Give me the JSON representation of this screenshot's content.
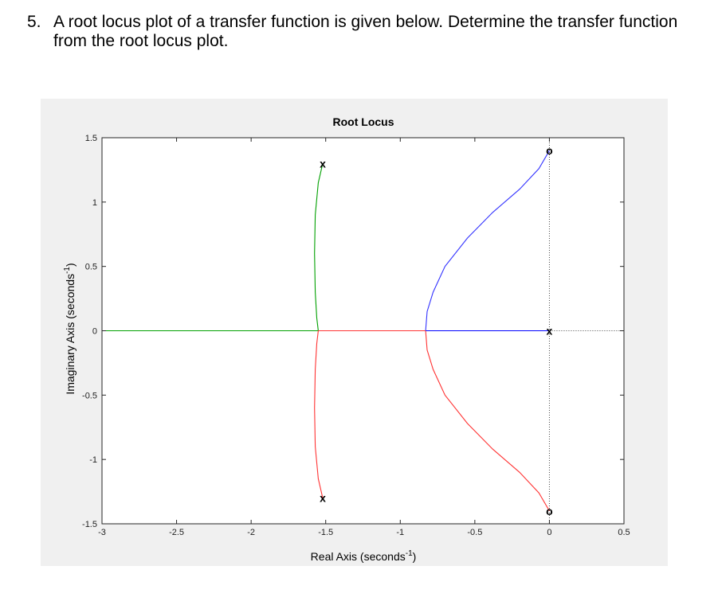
{
  "question": {
    "number": "5.",
    "text": "A root locus plot of a transfer function is given below.  Determine the transfer function from the root locus plot."
  },
  "chart_data": {
    "type": "line",
    "title": "Root Locus",
    "xlabel": "Real Axis (seconds",
    "ylabel": "Imaginary Axis (seconds",
    "axis_unit_exponent": "-1",
    "axis_label_close": ")",
    "xlim": [
      -3,
      0.5
    ],
    "ylim": [
      -1.5,
      1.5
    ],
    "xticks": [
      -3,
      -2.5,
      -2,
      -1.5,
      -1,
      -0.5,
      0,
      0.5
    ],
    "yticks": [
      -1.5,
      -1,
      -0.5,
      0,
      0.5,
      1,
      1.5
    ],
    "xtick_labels": [
      "-3",
      "-2.5",
      "-2",
      "-1.5",
      "-1",
      "-0.5",
      "0",
      "0.5"
    ],
    "ytick_labels": [
      "-1.5",
      "-1",
      "-0.5",
      "0",
      "0.5",
      "1",
      "1.5"
    ],
    "grid": false,
    "poles": [
      {
        "re": -1.52,
        "im": 1.3,
        "symbol": "x"
      },
      {
        "re": -1.52,
        "im": -1.3,
        "symbol": "x"
      },
      {
        "re": 0,
        "im": 0,
        "symbol": "x"
      }
    ],
    "zeros": [
      {
        "re": 0,
        "im": 1.4,
        "symbol": "o"
      },
      {
        "re": 0,
        "im": -1.4,
        "symbol": "o"
      }
    ],
    "series": [
      {
        "color": "#00a000",
        "points": [
          [
            -1.52,
            1.3
          ],
          [
            -1.55,
            1.15
          ],
          [
            -1.57,
            0.9
          ],
          [
            -1.575,
            0.6
          ],
          [
            -1.57,
            0.3
          ],
          [
            -1.56,
            0.1
          ],
          [
            -1.55,
            0
          ]
        ]
      },
      {
        "color": "#00a000",
        "points": [
          [
            -1.55,
            0
          ],
          [
            -3.0,
            0
          ]
        ]
      },
      {
        "color": "#ff3333",
        "points": [
          [
            -1.52,
            -1.3
          ],
          [
            -1.55,
            -1.15
          ],
          [
            -1.57,
            -0.9
          ],
          [
            -1.575,
            -0.6
          ],
          [
            -1.57,
            -0.3
          ],
          [
            -1.56,
            -0.1
          ],
          [
            -1.55,
            0
          ]
        ]
      },
      {
        "color": "#ff3333",
        "points": [
          [
            -1.55,
            0
          ],
          [
            -0.83,
            0
          ]
        ]
      },
      {
        "color": "#0000ff",
        "points": [
          [
            0,
            0
          ],
          [
            -0.83,
            0
          ]
        ]
      },
      {
        "color": "#3333ff",
        "points": [
          [
            -0.83,
            0
          ],
          [
            -0.82,
            0.15
          ],
          [
            -0.78,
            0.3
          ],
          [
            -0.7,
            0.5
          ],
          [
            -0.55,
            0.72
          ],
          [
            -0.38,
            0.92
          ],
          [
            -0.2,
            1.1
          ],
          [
            -0.07,
            1.26
          ],
          [
            0,
            1.4
          ]
        ]
      },
      {
        "color": "#ff3333",
        "points": [
          [
            -0.83,
            0
          ],
          [
            -0.82,
            -0.15
          ],
          [
            -0.78,
            -0.3
          ],
          [
            -0.7,
            -0.5
          ],
          [
            -0.55,
            -0.72
          ],
          [
            -0.38,
            -0.92
          ],
          [
            -0.2,
            -1.1
          ],
          [
            -0.07,
            -1.26
          ],
          [
            0,
            -1.4
          ]
        ]
      }
    ],
    "dotted_lines": [
      {
        "points": [
          [
            0,
            1.5
          ],
          [
            0,
            -1.5
          ]
        ]
      },
      {
        "points": [
          [
            0,
            0
          ],
          [
            0.5,
            0
          ]
        ]
      }
    ]
  }
}
